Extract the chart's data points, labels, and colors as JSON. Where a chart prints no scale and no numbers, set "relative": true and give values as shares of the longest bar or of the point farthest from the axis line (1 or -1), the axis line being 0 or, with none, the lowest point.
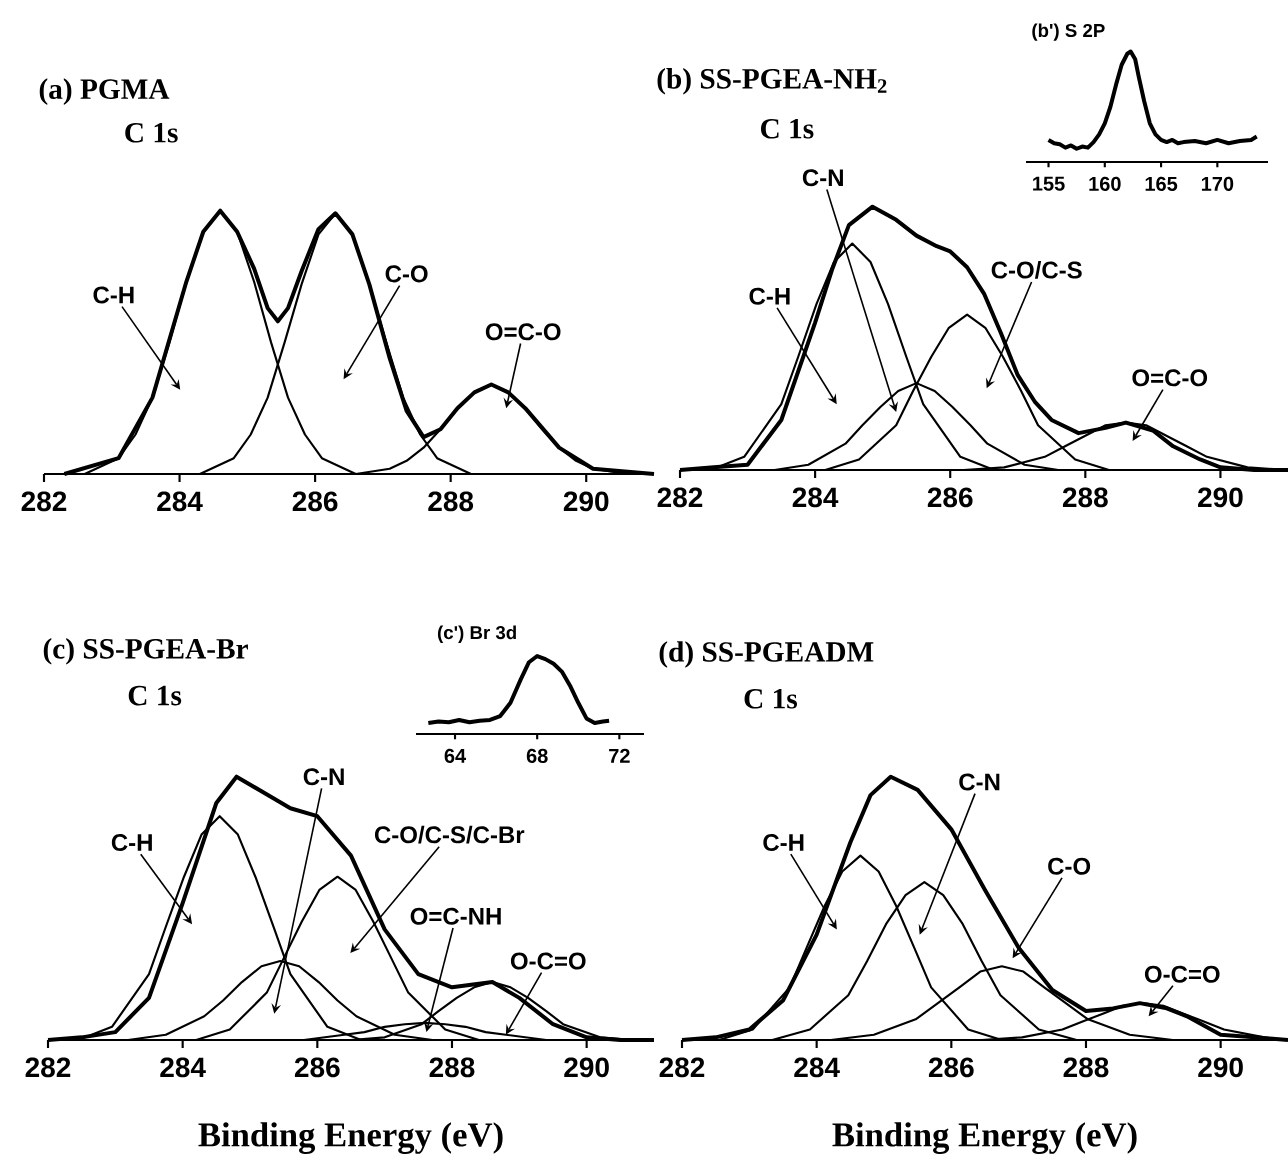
{
  "chart_data": [
    {
      "type": "line",
      "title": "(a) PGMA",
      "subtitle": "C 1s",
      "relative": true,
      "xlim": [
        282,
        291
      ],
      "xticks": [
        282,
        284,
        286,
        288,
        290
      ],
      "series": [
        {
          "color": "#000000",
          "x": [
            282.3,
            283.1,
            283.6,
            284.1,
            284.35,
            284.6,
            284.85,
            285.1,
            285.3,
            285.45,
            285.6,
            285.8,
            286.05,
            286.3,
            286.55,
            286.8,
            287.1,
            287.35,
            287.6,
            287.85,
            288.1,
            288.35,
            288.6,
            288.85,
            289.1,
            289.6,
            290.1,
            291
          ],
          "values": [
            0,
            0.06,
            0.29,
            0.73,
            0.92,
            1.0,
            0.92,
            0.78,
            0.63,
            0.58,
            0.63,
            0.77,
            0.93,
            0.99,
            0.91,
            0.72,
            0.44,
            0.24,
            0.14,
            0.17,
            0.25,
            0.31,
            0.34,
            0.31,
            0.25,
            0.1,
            0.02,
            0
          ]
        },
        {
          "color": "#000000",
          "x": [
            282.6,
            283.1,
            283.35,
            283.6,
            283.85,
            284.1,
            284.35,
            284.6,
            284.85,
            285.1,
            285.35,
            285.6,
            285.85,
            286.1,
            286.6
          ],
          "values": [
            0,
            0.06,
            0.15,
            0.29,
            0.5,
            0.73,
            0.92,
            1,
            0.92,
            0.73,
            0.5,
            0.29,
            0.15,
            0.06,
            0
          ]
        },
        {
          "color": "#000000",
          "x": [
            284.3,
            284.8,
            285.05,
            285.3,
            285.55,
            285.8,
            286.05,
            286.3,
            286.55,
            286.8,
            287.05,
            287.3,
            287.55,
            287.8,
            288.3
          ],
          "values": [
            0,
            0.06,
            0.15,
            0.29,
            0.5,
            0.72,
            0.91,
            0.99,
            0.91,
            0.72,
            0.5,
            0.29,
            0.15,
            0.06,
            0
          ]
        },
        {
          "color": "#000000",
          "x": [
            286.6,
            287.1,
            287.35,
            287.6,
            287.85,
            288.1,
            288.35,
            288.6,
            288.85,
            289.1,
            289.35,
            289.6,
            289.85,
            290.1,
            290.6
          ],
          "values": [
            0,
            0.02,
            0.05,
            0.1,
            0.17,
            0.25,
            0.31,
            0.34,
            0.31,
            0.25,
            0.17,
            0.1,
            0.05,
            0.02,
            0
          ]
        }
      ],
      "annotations": [
        "C-H",
        "C-O",
        "O=C-O"
      ]
    },
    {
      "type": "line",
      "title": "(b) SS-PGEA-NH$_{2}$",
      "subtitle": "C 1s",
      "relative": true,
      "xlim": [
        282,
        291
      ],
      "xticks": [
        282,
        284,
        286,
        288,
        290
      ],
      "series": [
        {
          "color": "#000000",
          "x": [
            282,
            282.5,
            283,
            283.5,
            284,
            284.25,
            284.5,
            284.85,
            285.2,
            285.5,
            285.8,
            286,
            286.25,
            286.5,
            286.75,
            287,
            287.25,
            287.5,
            287.9,
            288.3,
            288.6,
            289,
            289.3,
            289.7,
            290,
            290.5,
            291
          ],
          "values": [
            0,
            0.01,
            0.02,
            0.19,
            0.56,
            0.76,
            0.93,
            1.0,
            0.95,
            0.89,
            0.85,
            0.83,
            0.77,
            0.67,
            0.52,
            0.36,
            0.26,
            0.19,
            0.14,
            0.16,
            0.18,
            0.15,
            0.09,
            0.04,
            0.01,
            0,
            0
          ]
        },
        {
          "color": "#000000",
          "x": [
            282.45,
            282.95,
            283.5,
            283.75,
            284.02,
            284.28,
            284.55,
            284.82,
            285.08,
            285.35,
            285.6,
            286.15,
            286.65
          ],
          "values": [
            0,
            0.05,
            0.25,
            0.43,
            0.63,
            0.79,
            0.86,
            0.79,
            0.63,
            0.43,
            0.25,
            0.05,
            0
          ]
        },
        {
          "color": "#000000",
          "x": [
            283.4,
            283.9,
            284.45,
            284.7,
            284.97,
            285.23,
            285.5,
            285.77,
            286.03,
            286.3,
            286.55,
            287.1,
            287.6
          ],
          "values": [
            0,
            0.02,
            0.1,
            0.17,
            0.24,
            0.3,
            0.33,
            0.3,
            0.24,
            0.17,
            0.1,
            0.02,
            0
          ]
        },
        {
          "color": "#000000",
          "x": [
            284.15,
            284.65,
            285.2,
            285.45,
            285.72,
            285.98,
            286.25,
            286.52,
            286.78,
            287.05,
            287.3,
            287.85,
            288.35
          ],
          "values": [
            0,
            0.04,
            0.17,
            0.3,
            0.43,
            0.54,
            0.59,
            0.54,
            0.43,
            0.3,
            0.17,
            0.04,
            0
          ]
        },
        {
          "color": "#000000",
          "x": [
            286.2,
            286.8,
            287.4,
            287.7,
            288.0,
            288.3,
            288.6,
            288.9,
            289.2,
            289.5,
            289.8,
            290.4,
            291
          ],
          "values": [
            0,
            0.01,
            0.05,
            0.09,
            0.13,
            0.17,
            0.18,
            0.17,
            0.13,
            0.09,
            0.05,
            0.01,
            0
          ]
        }
      ],
      "annotations": [
        "C-N",
        "C-H",
        "C-O/C-S",
        "O=C-O"
      ]
    },
    {
      "type": "line",
      "title": "(b') S 2P",
      "relative": true,
      "xlim": [
        153,
        174.5
      ],
      "xticks": [
        155,
        160,
        165,
        170
      ],
      "series": [
        {
          "color": "#000000",
          "x": [
            155,
            155.5,
            156,
            156.5,
            157,
            157.5,
            158,
            158.5,
            159,
            159.5,
            160,
            160.5,
            161,
            161.5,
            162,
            162.3,
            162.7,
            163,
            163.5,
            164,
            164.5,
            165,
            165.5,
            166,
            166.5,
            167,
            168,
            169,
            170,
            171,
            172,
            173,
            173.5
          ],
          "values": [
            0.2,
            0.17,
            0.16,
            0.13,
            0.15,
            0.12,
            0.14,
            0.13,
            0.18,
            0.25,
            0.35,
            0.5,
            0.7,
            0.88,
            0.98,
            1.0,
            0.93,
            0.78,
            0.55,
            0.35,
            0.25,
            0.2,
            0.18,
            0.2,
            0.17,
            0.18,
            0.19,
            0.17,
            0.2,
            0.17,
            0.19,
            0.2,
            0.23
          ]
        }
      ]
    },
    {
      "type": "line",
      "title": "(c) SS-PGEA-Br",
      "subtitle": "C 1s",
      "xlabel": "Binding Energy (eV)",
      "relative": true,
      "xlim": [
        282,
        291
      ],
      "xticks": [
        282,
        284,
        286,
        288,
        290
      ],
      "series": [
        {
          "color": "#000000",
          "x": [
            282,
            282.5,
            283,
            283.5,
            284,
            284.5,
            284.8,
            285.2,
            285.6,
            286,
            286.5,
            287,
            287.5,
            288,
            288.6,
            289,
            289.5,
            290,
            290.5,
            291
          ],
          "values": [
            0,
            0.01,
            0.03,
            0.16,
            0.52,
            0.9,
            1.0,
            0.94,
            0.88,
            0.85,
            0.7,
            0.42,
            0.25,
            0.2,
            0.22,
            0.16,
            0.06,
            0.01,
            0,
            0
          ]
        },
        {
          "color": "#000000",
          "x": [
            282.45,
            282.95,
            283.5,
            283.75,
            284.02,
            284.28,
            284.55,
            284.82,
            285.08,
            285.35,
            285.6,
            286.15,
            286.65
          ],
          "values": [
            0,
            0.05,
            0.25,
            0.43,
            0.62,
            0.78,
            0.85,
            0.78,
            0.62,
            0.43,
            0.25,
            0.05,
            0
          ]
        },
        {
          "color": "#000000",
          "x": [
            283.19,
            283.75,
            284.32,
            284.6,
            284.88,
            285.17,
            285.45,
            285.73,
            286.02,
            286.3,
            286.58,
            287.15,
            287.71
          ],
          "values": [
            0,
            0.02,
            0.09,
            0.15,
            0.22,
            0.28,
            0.3,
            0.28,
            0.22,
            0.15,
            0.09,
            0.02,
            0
          ]
        },
        {
          "color": "#000000",
          "x": [
            284.2,
            284.7,
            285.25,
            285.5,
            285.77,
            286.03,
            286.3,
            286.57,
            286.83,
            287.1,
            287.35,
            287.9,
            288.4
          ],
          "values": [
            0,
            0.04,
            0.18,
            0.31,
            0.45,
            0.57,
            0.62,
            0.57,
            0.45,
            0.31,
            0.18,
            0.04,
            0
          ]
        },
        {
          "color": "#000000",
          "x": [
            285.2,
            285.8,
            286.4,
            286.7,
            287.0,
            287.3,
            287.6,
            287.9,
            288.2,
            288.5,
            288.8,
            289.4,
            290
          ],
          "values": [
            0,
            0,
            0.02,
            0.03,
            0.05,
            0.06,
            0.065,
            0.06,
            0.05,
            0.03,
            0.02,
            0,
            0
          ]
        },
        {
          "color": "#000000",
          "x": [
            286.5,
            287,
            287.55,
            287.8,
            288.07,
            288.33,
            288.6,
            288.87,
            289.13,
            289.4,
            289.65,
            290.2,
            290.7
          ],
          "values": [
            0,
            0.01,
            0.06,
            0.11,
            0.16,
            0.2,
            0.22,
            0.2,
            0.16,
            0.11,
            0.06,
            0.01,
            0
          ]
        }
      ],
      "annotations": [
        "C-H",
        "C-N",
        "C-O/C-S/C-Br",
        "O=C-NH",
        "O-C=O"
      ]
    },
    {
      "type": "line",
      "title": "(c') Br 3d",
      "relative": true,
      "xlim": [
        62.1,
        73.2
      ],
      "xticks": [
        64,
        68,
        72
      ],
      "series": [
        {
          "color": "#000000",
          "x": [
            62.7,
            63.2,
            63.7,
            64.2,
            64.7,
            65.2,
            65.7,
            66.2,
            66.7,
            67.2,
            67.6,
            68,
            68.4,
            68.8,
            69.2,
            69.6,
            70,
            70.4,
            70.8,
            71.2,
            71.5
          ],
          "values": [
            0.14,
            0.16,
            0.15,
            0.18,
            0.15,
            0.17,
            0.18,
            0.23,
            0.4,
            0.7,
            0.92,
            1.0,
            0.96,
            0.9,
            0.8,
            0.62,
            0.4,
            0.2,
            0.14,
            0.16,
            0.17
          ]
        }
      ]
    },
    {
      "type": "line",
      "title": "(d) SS-PGEADM",
      "subtitle": "C 1s",
      "xlabel": "Binding Energy (eV)",
      "relative": true,
      "xlim": [
        282,
        291
      ],
      "xticks": [
        282,
        284,
        286,
        288,
        290
      ],
      "series": [
        {
          "color": "#000000",
          "x": [
            282,
            282.5,
            283,
            283.5,
            284,
            284.5,
            284.8,
            285.1,
            285.5,
            286,
            286.5,
            287,
            287.5,
            288,
            288.4,
            288.8,
            289.2,
            289.5,
            290,
            290.5,
            291
          ],
          "values": [
            0,
            0.01,
            0.04,
            0.15,
            0.4,
            0.75,
            0.93,
            1.0,
            0.95,
            0.8,
            0.57,
            0.35,
            0.19,
            0.11,
            0.12,
            0.14,
            0.12,
            0.09,
            0.02,
            0.01,
            0
          ]
        },
        {
          "color": "#000000",
          "x": [
            282.55,
            283.05,
            283.6,
            283.85,
            284.12,
            284.38,
            284.65,
            284.92,
            285.18,
            285.45,
            285.7,
            286.25,
            286.75
          ],
          "values": [
            0,
            0.04,
            0.2,
            0.35,
            0.51,
            0.64,
            0.7,
            0.64,
            0.51,
            0.35,
            0.2,
            0.04,
            0
          ]
        },
        {
          "color": "#000000",
          "x": [
            283.34,
            283.9,
            284.47,
            284.75,
            285.03,
            285.32,
            285.6,
            285.88,
            286.17,
            286.45,
            286.73,
            287.3,
            287.86
          ],
          "values": [
            0,
            0.04,
            0.17,
            0.3,
            0.44,
            0.55,
            0.6,
            0.55,
            0.44,
            0.3,
            0.17,
            0.04,
            0
          ]
        },
        {
          "color": "#000000",
          "x": [
            284.21,
            284.85,
            285.48,
            285.8,
            286.12,
            286.43,
            286.75,
            287.07,
            287.38,
            287.7,
            288.02,
            288.65,
            289.29
          ],
          "values": [
            0,
            0.02,
            0.08,
            0.14,
            0.2,
            0.26,
            0.28,
            0.26,
            0.2,
            0.14,
            0.08,
            0.02,
            0
          ]
        },
        {
          "color": "#000000",
          "x": [
            286.45,
            287.05,
            287.65,
            287.95,
            288.25,
            288.55,
            288.85,
            289.15,
            289.45,
            289.75,
            290.05,
            290.65,
            291
          ],
          "values": [
            0,
            0.01,
            0.04,
            0.07,
            0.1,
            0.13,
            0.14,
            0.13,
            0.1,
            0.07,
            0.04,
            0.01,
            0
          ]
        }
      ],
      "annotations": [
        "C-H",
        "C-N",
        "C-O",
        "O-C=O"
      ]
    }
  ]
}
